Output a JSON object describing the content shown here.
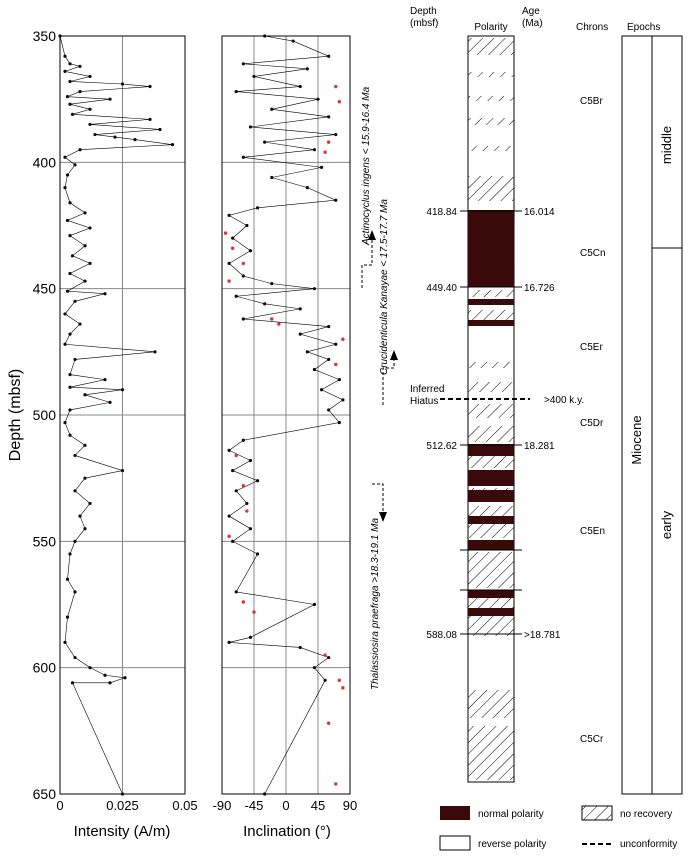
{
  "chart_data": [
    {
      "type": "scatter",
      "panel": "intensity",
      "xlabel": "Intensity (A/m)",
      "ylabel": "Depth (mbsf)",
      "xlim": [
        0,
        0.05
      ],
      "ylim": [
        650,
        350
      ],
      "x_ticks": [
        "0",
        "0.025",
        "0.05"
      ],
      "y_ticks": [
        "350",
        "400",
        "450",
        "500",
        "550",
        "600",
        "650"
      ],
      "grid": true,
      "series": [
        {
          "values": [
            [
              0,
              350
            ],
            [
              0.002,
              358
            ],
            [
              0.004,
              361
            ],
            [
              0.008,
              362
            ],
            [
              0.002,
              364
            ],
            [
              0.012,
              366
            ],
            [
              0.004,
              368
            ],
            [
              0.025,
              369
            ],
            [
              0.036,
              370
            ],
            [
              0.008,
              372
            ],
            [
              0.003,
              374
            ],
            [
              0.02,
              375
            ],
            [
              0.004,
              377
            ],
            [
              0.012,
              379
            ],
            [
              0.005,
              381
            ],
            [
              0.036,
              383
            ],
            [
              0.012,
              385
            ],
            [
              0.04,
              387
            ],
            [
              0.014,
              389
            ],
            [
              0.022,
              390
            ],
            [
              0.03,
              391
            ],
            [
              0.045,
              393
            ],
            [
              0.008,
              395
            ],
            [
              0.002,
              398
            ],
            [
              0.006,
              401
            ],
            [
              0.003,
              405
            ],
            [
              0.002,
              410
            ],
            [
              0.004,
              416
            ],
            [
              0.01,
              420
            ],
            [
              0.003,
              423
            ],
            [
              0.012,
              426
            ],
            [
              0.004,
              429
            ],
            [
              0.01,
              433
            ],
            [
              0.005,
              437
            ],
            [
              0.012,
              440
            ],
            [
              0.004,
              444
            ],
            [
              0.01,
              447
            ],
            [
              0.003,
              451
            ],
            [
              0.018,
              452
            ],
            [
              0.006,
              455
            ],
            [
              0.002,
              460
            ],
            [
              0.008,
              464
            ],
            [
              0.004,
              468
            ],
            [
              0.002,
              472
            ],
            [
              0.038,
              475
            ],
            [
              0.006,
              478
            ],
            [
              0.004,
              484
            ],
            [
              0.018,
              486
            ],
            [
              0.004,
              489
            ],
            [
              0.025,
              490
            ],
            [
              0.01,
              492
            ],
            [
              0.02,
              495
            ],
            [
              0.004,
              498
            ],
            [
              0.002,
              503
            ],
            [
              0.004,
              508
            ],
            [
              0.01,
              512
            ],
            [
              0.006,
              516
            ],
            [
              0.025,
              522
            ],
            [
              0.01,
              525
            ],
            [
              0.006,
              530
            ],
            [
              0.012,
              535
            ],
            [
              0.008,
              540
            ],
            [
              0.01,
              545
            ],
            [
              0.006,
              550
            ],
            [
              0.004,
              555
            ],
            [
              0.003,
              565
            ],
            [
              0.006,
              570
            ],
            [
              0.003,
              580
            ],
            [
              0.002,
              590
            ],
            [
              0.006,
              596
            ],
            [
              0.012,
              600
            ],
            [
              0.018,
              603
            ],
            [
              0.026,
              604
            ],
            [
              0.02,
              606
            ],
            [
              0.005,
              606
            ],
            [
              0.025,
              650
            ]
          ]
        }
      ]
    },
    {
      "type": "scatter",
      "panel": "inclination",
      "xlabel": "Inclination (°)",
      "xlim": [
        -90,
        90
      ],
      "ylim": [
        650,
        350
      ],
      "x_ticks": [
        "-90",
        "-45",
        "0",
        "45",
        "90"
      ],
      "grid": true,
      "series": [
        {
          "values": [
            [
              -30,
              350
            ],
            [
              10,
              352
            ],
            [
              60,
              358
            ],
            [
              -60,
              361
            ],
            [
              30,
              363
            ],
            [
              -45,
              366
            ],
            [
              20,
              370
            ],
            [
              -70,
              372
            ],
            [
              45,
              375
            ],
            [
              -20,
              379
            ],
            [
              60,
              382
            ],
            [
              -50,
              386
            ],
            [
              70,
              389
            ],
            [
              -30,
              392
            ],
            [
              40,
              395
            ],
            [
              -60,
              398
            ],
            [
              50,
              402
            ],
            [
              -20,
              406
            ],
            [
              30,
              410
            ],
            [
              70,
              415
            ],
            [
              -40,
              418
            ],
            [
              -80,
              421
            ],
            [
              -55,
              425
            ],
            [
              -75,
              430
            ],
            [
              -50,
              435
            ],
            [
              -80,
              440
            ],
            [
              -60,
              445
            ],
            [
              -20,
              448
            ],
            [
              40,
              450
            ],
            [
              -70,
              453
            ],
            [
              -30,
              456
            ],
            [
              20,
              458
            ],
            [
              -60,
              462
            ],
            [
              60,
              465
            ],
            [
              20,
              468
            ],
            [
              70,
              472
            ],
            [
              30,
              475
            ],
            [
              60,
              478
            ],
            [
              40,
              482
            ],
            [
              75,
              486
            ],
            [
              50,
              490
            ],
            [
              80,
              494
            ],
            [
              60,
              498
            ],
            [
              75,
              503
            ],
            [
              -60,
              510
            ],
            [
              -80,
              514
            ],
            [
              -50,
              518
            ],
            [
              -75,
              522
            ],
            [
              -40,
              526
            ],
            [
              -70,
              530
            ],
            [
              -55,
              535
            ],
            [
              -80,
              540
            ],
            [
              -50,
              545
            ],
            [
              -75,
              550
            ],
            [
              -40,
              555
            ],
            [
              -70,
              570
            ],
            [
              40,
              575
            ],
            [
              -50,
              588
            ],
            [
              -80,
              590
            ],
            [
              20,
              592
            ],
            [
              60,
              596
            ],
            [
              40,
              600
            ],
            [
              55,
              605
            ],
            [
              -30,
              650
            ]
          ]
        },
        {
          "color": "#e0312c",
          "values": [
            [
              70,
              370
            ],
            [
              75,
              376
            ],
            [
              60,
              392
            ],
            [
              55,
              396
            ],
            [
              -85,
              428
            ],
            [
              -75,
              434
            ],
            [
              -60,
              440
            ],
            [
              -80,
              447
            ],
            [
              -20,
              462
            ],
            [
              -10,
              464
            ],
            [
              80,
              470
            ],
            [
              70,
              480
            ],
            [
              -70,
              516
            ],
            [
              -60,
              528
            ],
            [
              -55,
              538
            ],
            [
              -80,
              548
            ],
            [
              -60,
              574
            ],
            [
              -45,
              578
            ],
            [
              55,
              595
            ],
            [
              75,
              605
            ],
            [
              80,
              608
            ],
            [
              60,
              622
            ],
            [
              70,
              646
            ]
          ]
        }
      ]
    }
  ],
  "polarity": {
    "headers": {
      "depth": "Depth (mbsf)",
      "polarity": "Polarity",
      "age": "Age (Ma)",
      "chrons": "Chrons",
      "epochs": "Epochs"
    },
    "depth_labels": [
      "418.84",
      "449.40",
      "512.62",
      "588.08"
    ],
    "age_labels": [
      "16.014",
      "16.726",
      "18.281",
      ">18.781"
    ],
    "chrons": [
      "C5Br",
      "C5Cn",
      "C5Er",
      "C5Dr",
      "C5En",
      "C5Cr"
    ],
    "epoch": "Miocene",
    "subepochs": [
      "middle",
      "early"
    ],
    "hiatus_label": "Inferred Hiatus",
    "hiatus_value": ">400 k.y.",
    "normal_color": "#3a0a0a"
  },
  "biostrat": [
    "Actinocyclus ingens < 15.9-16.4 Ma",
    "Crucidenticula Kanayae < 17.5-17.7 Ma",
    "Thalassiosira praefraga >18.3-19.1 Ma"
  ],
  "legend": {
    "normal": "normal polarity",
    "reverse": "reverse polarity",
    "no_recovery": "no recovery",
    "unconformity": "unconformity"
  }
}
